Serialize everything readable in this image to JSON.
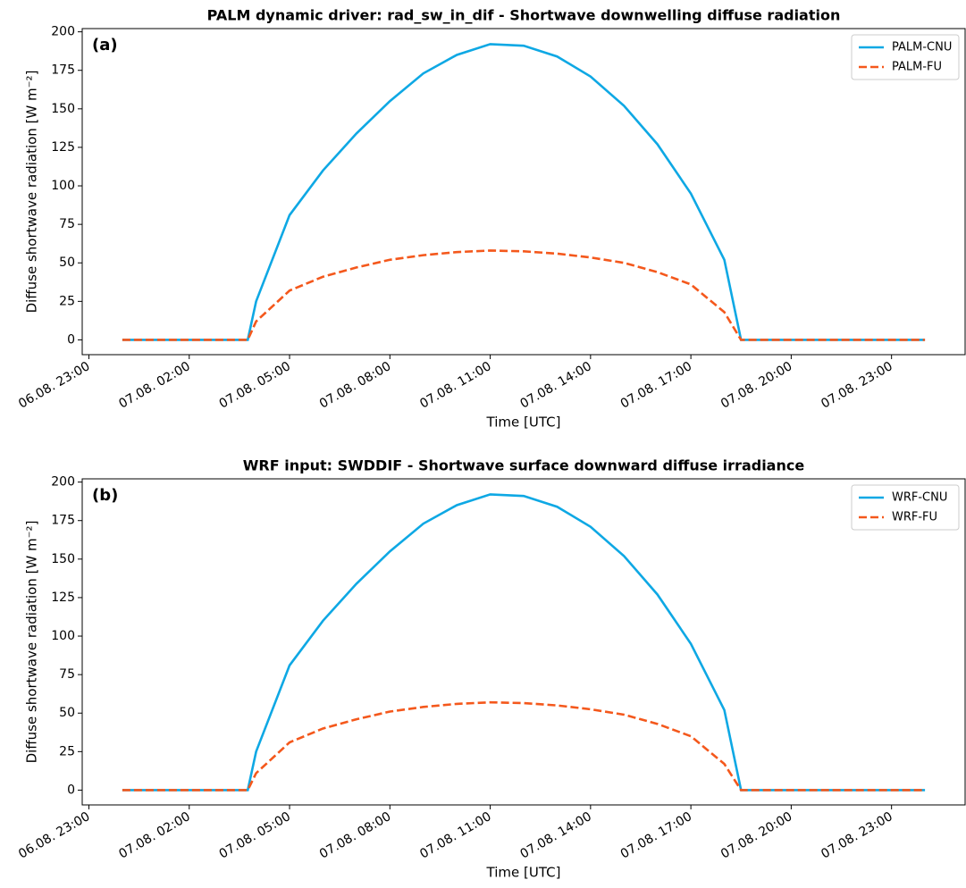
{
  "chart_data": [
    {
      "type": "line",
      "title": "PALM dynamic driver: rad_sw_in_dif - Shortwave downwelling diffuse radiation",
      "annotation": "(a)",
      "x_label": "Time [UTC]",
      "y_label": "Diffuse shortwave radiation [W m⁻²]",
      "x": [
        "07.08. 00:00",
        "07.08. 01:00",
        "07.08. 02:00",
        "07.08. 03:00",
        "07.08. 03:45",
        "07.08. 04:00",
        "07.08. 05:00",
        "07.08. 06:00",
        "07.08. 07:00",
        "07.08. 08:00",
        "07.08. 09:00",
        "07.08. 10:00",
        "07.08. 11:00",
        "07.08. 12:00",
        "07.08. 13:00",
        "07.08. 14:00",
        "07.08. 15:00",
        "07.08. 16:00",
        "07.08. 17:00",
        "07.08. 18:00",
        "07.08. 18:30",
        "07.08. 19:00",
        "07.08. 20:00",
        "07.08. 21:00",
        "07.08. 22:00",
        "07.08. 23:00",
        "08.08. 00:00"
      ],
      "series": [
        {
          "name": "PALM-CNU",
          "color": "#0ea8e4",
          "linestyle": "solid",
          "values": [
            0,
            0,
            0,
            0,
            0,
            25,
            81,
            110,
            134,
            155,
            173,
            185,
            192,
            191,
            184,
            171,
            152,
            127,
            95,
            52,
            0,
            0,
            0,
            0,
            0,
            0,
            0
          ]
        },
        {
          "name": "PALM-FU",
          "color": "#f4581c",
          "linestyle": "dashed",
          "values": [
            0,
            0,
            0,
            0,
            0,
            12,
            32,
            41,
            47,
            52,
            55,
            57,
            58,
            57.5,
            56,
            53.5,
            50,
            44,
            36,
            18,
            0,
            0,
            0,
            0,
            0,
            0,
            0
          ]
        }
      ],
      "xlim": [
        "06.08. 22:48",
        "08.08. 01:12"
      ],
      "xticks": [
        "06.08. 23:00",
        "07.08. 02:00",
        "07.08. 05:00",
        "07.08. 08:00",
        "07.08. 11:00",
        "07.08. 14:00",
        "07.08. 17:00",
        "07.08. 20:00",
        "07.08. 23:00"
      ],
      "ylim": [
        -9.6,
        202.1
      ],
      "yticks": [
        0,
        25,
        50,
        75,
        100,
        125,
        150,
        175,
        200
      ],
      "legend": "upper right"
    },
    {
      "type": "line",
      "title": "WRF input: SWDDIF - Shortwave surface downward diffuse irradiance",
      "annotation": "(b)",
      "x_label": "Time [UTC]",
      "y_label": "Diffuse shortwave radiation [W m⁻²]",
      "x": [
        "07.08. 00:00",
        "07.08. 01:00",
        "07.08. 02:00",
        "07.08. 03:00",
        "07.08. 03:45",
        "07.08. 04:00",
        "07.08. 05:00",
        "07.08. 06:00",
        "07.08. 07:00",
        "07.08. 08:00",
        "07.08. 09:00",
        "07.08. 10:00",
        "07.08. 11:00",
        "07.08. 12:00",
        "07.08. 13:00",
        "07.08. 14:00",
        "07.08. 15:00",
        "07.08. 16:00",
        "07.08. 17:00",
        "07.08. 18:00",
        "07.08. 18:30",
        "07.08. 19:00",
        "07.08. 20:00",
        "07.08. 21:00",
        "07.08. 22:00",
        "07.08. 23:00",
        "08.08. 00:00"
      ],
      "series": [
        {
          "name": "WRF-CNU",
          "color": "#0ea8e4",
          "linestyle": "solid",
          "values": [
            0,
            0,
            0,
            0,
            0,
            25,
            81,
            110,
            134,
            155,
            173,
            185,
            192,
            191,
            184,
            171,
            152,
            127,
            95,
            52,
            0,
            0,
            0,
            0,
            0,
            0,
            0
          ]
        },
        {
          "name": "WRF-FU",
          "color": "#f4581c",
          "linestyle": "dashed",
          "values": [
            0,
            0,
            0,
            0,
            0,
            11,
            31,
            40,
            46,
            51,
            54,
            56,
            57,
            56.5,
            55,
            52.5,
            49,
            43,
            35,
            17,
            0,
            0,
            0,
            0,
            0,
            0,
            0
          ]
        }
      ],
      "xlim": [
        "06.08. 22:48",
        "08.08. 01:12"
      ],
      "xticks": [
        "06.08. 23:00",
        "07.08. 02:00",
        "07.08. 05:00",
        "07.08. 08:00",
        "07.08. 11:00",
        "07.08. 14:00",
        "07.08. 17:00",
        "07.08. 20:00",
        "07.08. 23:00"
      ],
      "ylim": [
        -9.6,
        202.1
      ],
      "yticks": [
        0,
        25,
        50,
        75,
        100,
        125,
        150,
        175,
        200
      ],
      "legend": "upper right"
    }
  ]
}
